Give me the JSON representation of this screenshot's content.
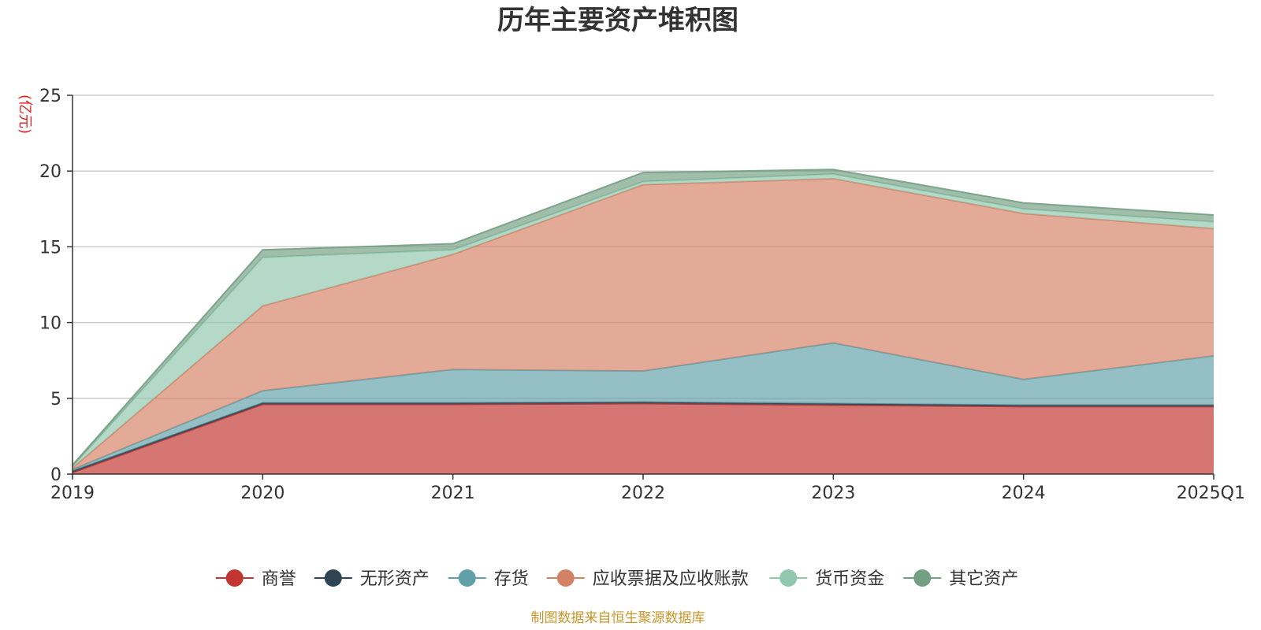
{
  "chart_data": {
    "type": "area",
    "stacked": true,
    "title": "历年主要资产堆积图",
    "unit_label": "(亿元)",
    "categories": [
      "2019",
      "2020",
      "2021",
      "2022",
      "2023",
      "2024",
      "2025Q1"
    ],
    "ylim": [
      0,
      25
    ],
    "yticks": [
      0,
      5,
      10,
      15,
      20,
      25
    ],
    "grid": true,
    "legend_position": "bottom",
    "series": [
      {
        "name": "商誉",
        "color": "#c23531",
        "values": [
          0.1,
          4.6,
          4.6,
          4.65,
          4.55,
          4.45,
          4.45
        ]
      },
      {
        "name": "无形资产",
        "color": "#2f4554",
        "values": [
          0.1,
          0.1,
          0.1,
          0.1,
          0.1,
          0.1,
          0.1
        ]
      },
      {
        "name": "存货",
        "color": "#61a0a8",
        "values": [
          0.1,
          0.8,
          2.2,
          2.05,
          4.0,
          1.7,
          3.25
        ]
      },
      {
        "name": "应收票据及应收账款",
        "color": "#d48265",
        "values": [
          0.1,
          5.6,
          7.6,
          12.3,
          10.85,
          10.95,
          8.4
        ]
      },
      {
        "name": "货币资金",
        "color": "#91c7ae",
        "values": [
          0.1,
          3.2,
          0.3,
          0.2,
          0.3,
          0.3,
          0.45
        ]
      },
      {
        "name": "其它资产",
        "color": "#749f83",
        "values": [
          0.1,
          0.5,
          0.4,
          0.6,
          0.3,
          0.4,
          0.45
        ]
      }
    ],
    "source": "制图数据来自恒生聚源数据库"
  }
}
